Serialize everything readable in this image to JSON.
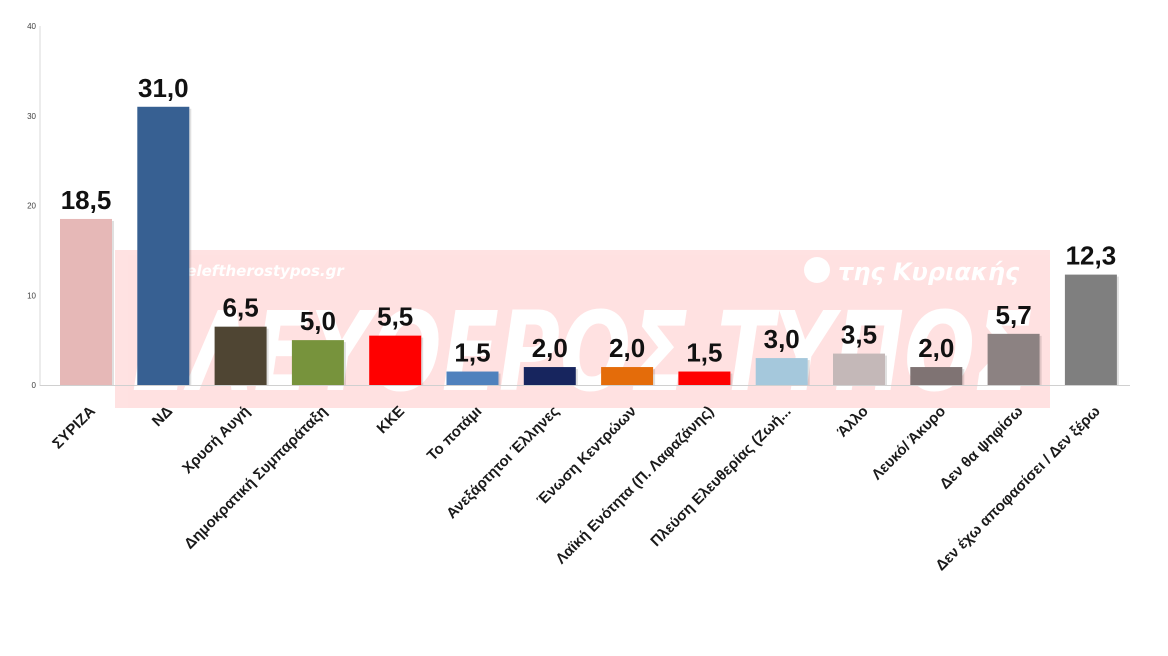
{
  "watermark": {
    "url": "www.eleftherostypos.gr",
    "title": "ΕΛΕΥΘΕΡΟΣ ΤΥΠΟΣ",
    "tagline": "της Κυριακής"
  },
  "chart_data": {
    "type": "bar",
    "categories": [
      "ΣΥΡΙΖΑ",
      "ΝΔ",
      "Χρυσή Αυγή",
      "Δημοκρατική Συμπαράταξη",
      "ΚΚΕ",
      "Το ποτάμι",
      "Ανεξάρτητοι Έλληνες",
      "Ένωση Κεντρώων",
      "Λαϊκή Ενότητα (Π. Λαφαζάνης)",
      "Πλεύση Ελευθερίας (Ζωή...",
      "Άλλο",
      "Λευκό/ Άκυρο",
      "Δεν θα ψηφίσω",
      "Δεν έχω αποφασίσει / Δεν ξέρω"
    ],
    "values": [
      18.5,
      31.0,
      6.5,
      5.0,
      5.5,
      1.5,
      2.0,
      2.0,
      1.5,
      3.0,
      3.5,
      2.0,
      5.7,
      12.3
    ],
    "data_labels": [
      "18,5",
      "31,0",
      "6,5",
      "5,0",
      "5,5",
      "1,5",
      "2,0",
      "2,0",
      "1,5",
      "3,0",
      "3,5",
      "2,0",
      "5,7",
      "12,3"
    ],
    "colors": [
      "#e6b8b7",
      "#376092",
      "#4f4533",
      "#77933c",
      "#ff0000",
      "#4f81bd",
      "#17255e",
      "#e46c0a",
      "#ff0000",
      "#a5c8dc",
      "#c4b8b8",
      "#7f7373",
      "#8c8282",
      "#7f7f7f"
    ],
    "yticks": [
      "0",
      "10",
      "20",
      "30",
      "40"
    ],
    "ylim": [
      0,
      40
    ],
    "grid": false,
    "title": "",
    "xlabel": "",
    "ylabel": ""
  }
}
